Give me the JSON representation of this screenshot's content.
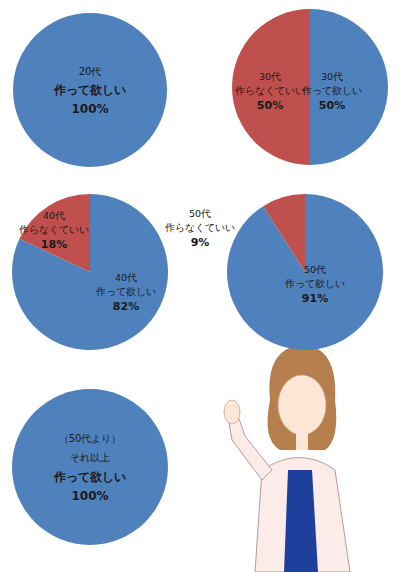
{
  "chart_data": [
    {
      "type": "pie",
      "categories": [
        "20代\n作って欲しい"
      ],
      "values": [
        100
      ],
      "value_labels": [
        "100%"
      ],
      "colors": [
        "#4f81bd"
      ],
      "data_labels": true
    },
    {
      "type": "pie",
      "categories": [
        "30代\n作って欲しい",
        "30代\n作らなくていい"
      ],
      "values": [
        50,
        50
      ],
      "value_labels": [
        "50%",
        "50%"
      ],
      "colors": [
        "#4f81bd",
        "#c0504d"
      ],
      "data_labels": true
    },
    {
      "type": "pie",
      "categories": [
        "40代\n作って欲しい",
        "40代\n作らなくていい"
      ],
      "values": [
        82,
        18
      ],
      "value_labels": [
        "82%",
        "18%"
      ],
      "colors": [
        "#4f81bd",
        "#c0504d"
      ],
      "data_labels": true
    },
    {
      "type": "pie",
      "categories": [
        "50代\n作って欲しい",
        "50代\n作らなくていい"
      ],
      "values": [
        91,
        9
      ],
      "value_labels": [
        "91%",
        "9%"
      ],
      "colors": [
        "#4f81bd",
        "#c0504d"
      ],
      "data_labels": true
    },
    {
      "type": "pie",
      "categories": [
        "（50代より）\nそれ以上\n作って欲しい"
      ],
      "values": [
        100
      ],
      "value_labels": [
        "100%"
      ],
      "colors": [
        "#4f81bd"
      ],
      "data_labels": true
    }
  ]
}
